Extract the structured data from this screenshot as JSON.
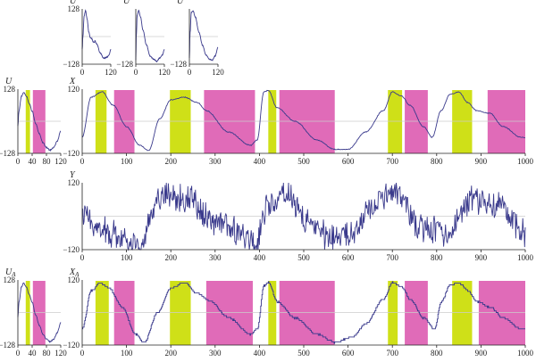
{
  "colors": {
    "trace": "#3a3a8c",
    "highlight_yellow": "#cfe018",
    "highlight_magenta": "#e06bb8",
    "axis": "#222222",
    "zero_line": "#cccccc"
  },
  "chart_data": [
    {
      "id": "u1",
      "type": "line",
      "ylabel": "U",
      "xlabel": "",
      "xlim": [
        0,
        120
      ],
      "ylim": [
        -128,
        128
      ],
      "x_ticks": [
        "0",
        "120"
      ],
      "y_ticks": [
        "128",
        "−128"
      ],
      "tick_side": "left",
      "shape": "wave_dip",
      "noise": 2,
      "keypoints": [
        [
          0,
          -60
        ],
        [
          3,
          0
        ],
        [
          8,
          95
        ],
        [
          14,
          120
        ],
        [
          20,
          85
        ],
        [
          28,
          20
        ],
        [
          34,
          -5
        ],
        [
          40,
          -10
        ],
        [
          48,
          -28
        ],
        [
          54,
          -22
        ],
        [
          62,
          -35
        ],
        [
          75,
          -75
        ],
        [
          90,
          -100
        ],
        [
          105,
          -95
        ],
        [
          113,
          -85
        ],
        [
          120,
          -60
        ]
      ],
      "highlights": []
    },
    {
      "id": "u2",
      "type": "line",
      "ylabel": "U",
      "xlabel": "",
      "xlim": [
        0,
        120
      ],
      "ylim": [
        -128,
        128
      ],
      "x_ticks": [
        "0",
        "120"
      ],
      "y_ticks": [
        "",
        "−128"
      ],
      "tick_side": "left",
      "shape": "wave_drop",
      "noise": 2,
      "keypoints": [
        [
          0,
          -110
        ],
        [
          2,
          0
        ],
        [
          6,
          100
        ],
        [
          12,
          120
        ],
        [
          20,
          90
        ],
        [
          30,
          30
        ],
        [
          45,
          -40
        ],
        [
          60,
          -90
        ],
        [
          75,
          -105
        ],
        [
          88,
          -115
        ],
        [
          100,
          -100
        ],
        [
          112,
          -85
        ],
        [
          120,
          -60
        ]
      ],
      "highlights": []
    },
    {
      "id": "u3",
      "type": "line",
      "ylabel": "U",
      "xlabel": "",
      "xlim": [
        0,
        120
      ],
      "ylim": [
        -128,
        128
      ],
      "x_ticks": [
        "0",
        "120"
      ],
      "y_ticks": [
        "",
        "−128"
      ],
      "tick_side": "left",
      "shape": "wave_drop",
      "noise": 2,
      "keypoints": [
        [
          0,
          -100
        ],
        [
          3,
          20
        ],
        [
          8,
          110
        ],
        [
          15,
          120
        ],
        [
          25,
          90
        ],
        [
          40,
          20
        ],
        [
          55,
          -40
        ],
        [
          70,
          -85
        ],
        [
          85,
          -105
        ],
        [
          95,
          -110
        ],
        [
          108,
          -90
        ],
        [
          120,
          -50
        ]
      ],
      "highlights": []
    },
    {
      "id": "u_main",
      "type": "line",
      "ylabel": "U",
      "xlabel": "",
      "xlim": [
        0,
        120
      ],
      "ylim": [
        -128,
        128
      ],
      "x_ticks": [
        "0",
        "40",
        "80",
        "120"
      ],
      "y_ticks": [
        "128",
        "−128"
      ],
      "tick_side": "left",
      "shape": "wave_drop",
      "noise": 2,
      "keypoints": [
        [
          0,
          -20
        ],
        [
          3,
          40
        ],
        [
          10,
          100
        ],
        [
          16,
          115
        ],
        [
          24,
          100
        ],
        [
          32,
          70
        ],
        [
          40,
          40
        ],
        [
          50,
          -10
        ],
        [
          60,
          -50
        ],
        [
          70,
          -85
        ],
        [
          80,
          -105
        ],
        [
          90,
          -115
        ],
        [
          100,
          -105
        ],
        [
          110,
          -80
        ],
        [
          120,
          -40
        ]
      ],
      "highlights": [
        {
          "start": 22,
          "end": 34,
          "color": "yellow"
        },
        {
          "start": 42,
          "end": 77,
          "color": "magenta"
        }
      ]
    },
    {
      "id": "x_main",
      "type": "line",
      "ylabel": "X",
      "xlabel": "",
      "xlim": [
        0,
        1000
      ],
      "ylim": [
        -120,
        120
      ],
      "x_ticks": [
        "0",
        "100",
        "200",
        "300",
        "400",
        "500",
        "600",
        "700",
        "800",
        "900",
        "1000"
      ],
      "y_ticks": [
        "120",
        "−120"
      ],
      "tick_side": "left",
      "shape": "smooth",
      "noise": 1.5,
      "keypoints": [
        [
          0,
          -60
        ],
        [
          20,
          90
        ],
        [
          45,
          110
        ],
        [
          70,
          60
        ],
        [
          100,
          -20
        ],
        [
          130,
          -90
        ],
        [
          150,
          -110
        ],
        [
          175,
          10
        ],
        [
          200,
          80
        ],
        [
          230,
          90
        ],
        [
          260,
          70
        ],
        [
          280,
          40
        ],
        [
          330,
          -40
        ],
        [
          380,
          -90
        ],
        [
          395,
          -70
        ],
        [
          410,
          110
        ],
        [
          420,
          115
        ],
        [
          440,
          50
        ],
        [
          480,
          0
        ],
        [
          530,
          -70
        ],
        [
          570,
          -105
        ],
        [
          600,
          -105
        ],
        [
          640,
          -40
        ],
        [
          680,
          40
        ],
        [
          700,
          110
        ],
        [
          720,
          95
        ],
        [
          740,
          60
        ],
        [
          770,
          -20
        ],
        [
          790,
          -60
        ],
        [
          810,
          40
        ],
        [
          830,
          100
        ],
        [
          850,
          110
        ],
        [
          870,
          70
        ],
        [
          890,
          40
        ],
        [
          920,
          30
        ],
        [
          950,
          -20
        ],
        [
          990,
          -60
        ]
      ],
      "highlights": [
        {
          "start": 30,
          "end": 55,
          "color": "yellow"
        },
        {
          "start": 72,
          "end": 118,
          "color": "magenta"
        },
        {
          "start": 198,
          "end": 245,
          "color": "yellow"
        },
        {
          "start": 275,
          "end": 390,
          "color": "magenta"
        },
        {
          "start": 420,
          "end": 438,
          "color": "yellow"
        },
        {
          "start": 445,
          "end": 570,
          "color": "magenta"
        },
        {
          "start": 690,
          "end": 722,
          "color": "yellow"
        },
        {
          "start": 728,
          "end": 780,
          "color": "magenta"
        },
        {
          "start": 835,
          "end": 880,
          "color": "yellow"
        },
        {
          "start": 915,
          "end": 1000,
          "color": "magenta"
        }
      ]
    },
    {
      "id": "y_main",
      "type": "line",
      "ylabel": "Y",
      "xlabel": "",
      "xlim": [
        0,
        1000
      ],
      "ylim": [
        -120,
        120
      ],
      "x_ticks": [
        "0",
        "100",
        "200",
        "300",
        "400",
        "500",
        "600",
        "700",
        "800",
        "900",
        "1000"
      ],
      "y_ticks": [
        "120",
        "−120"
      ],
      "tick_side": "left",
      "shape": "noisy",
      "noise": 45,
      "keypoints": [
        [
          0,
          0
        ],
        [
          60,
          -60
        ],
        [
          130,
          -100
        ],
        [
          180,
          80
        ],
        [
          240,
          60
        ],
        [
          300,
          -20
        ],
        [
          360,
          -60
        ],
        [
          390,
          -100
        ],
        [
          420,
          40
        ],
        [
          460,
          90
        ],
        [
          500,
          -10
        ],
        [
          560,
          -80
        ],
        [
          600,
          -70
        ],
        [
          660,
          30
        ],
        [
          700,
          95
        ],
        [
          760,
          -40
        ],
        [
          820,
          -60
        ],
        [
          880,
          60
        ],
        [
          940,
          40
        ],
        [
          1000,
          -60
        ]
      ],
      "highlights": []
    },
    {
      "id": "ua_main",
      "type": "line",
      "ylabel": "UA",
      "xlabel": "",
      "xlim": [
        0,
        120
      ],
      "ylim": [
        -128,
        128
      ],
      "x_ticks": [
        "0",
        "40",
        "80",
        "120"
      ],
      "y_ticks": [
        "128",
        "−128"
      ],
      "tick_side": "left",
      "shape": "wave_drop",
      "noise": 2,
      "keypoints": [
        [
          0,
          -20
        ],
        [
          3,
          40
        ],
        [
          10,
          100
        ],
        [
          16,
          115
        ],
        [
          24,
          100
        ],
        [
          32,
          70
        ],
        [
          40,
          40
        ],
        [
          50,
          -10
        ],
        [
          60,
          -50
        ],
        [
          70,
          -85
        ],
        [
          80,
          -105
        ],
        [
          90,
          -115
        ],
        [
          100,
          -105
        ],
        [
          110,
          -80
        ],
        [
          120,
          -40
        ]
      ],
      "highlights": [
        {
          "start": 22,
          "end": 34,
          "color": "yellow"
        },
        {
          "start": 42,
          "end": 77,
          "color": "magenta"
        }
      ]
    },
    {
      "id": "xa_main",
      "type": "line",
      "ylabel": "XA",
      "xlabel": "",
      "xlim": [
        0,
        1000
      ],
      "ylim": [
        -120,
        120
      ],
      "x_ticks": [
        "0",
        "100",
        "200",
        "300",
        "400",
        "500",
        "600",
        "700",
        "800",
        "900",
        "1000"
      ],
      "y_ticks": [
        "120",
        "−120"
      ],
      "tick_side": "left",
      "shape": "steps",
      "noise": 2,
      "keypoints": [
        [
          0,
          -60
        ],
        [
          20,
          80
        ],
        [
          40,
          110
        ],
        [
          60,
          90
        ],
        [
          90,
          20
        ],
        [
          120,
          -80
        ],
        [
          140,
          -110
        ],
        [
          170,
          0
        ],
        [
          200,
          90
        ],
        [
          230,
          110
        ],
        [
          260,
          70
        ],
        [
          290,
          40
        ],
        [
          330,
          -20
        ],
        [
          380,
          -80
        ],
        [
          395,
          -60
        ],
        [
          410,
          100
        ],
        [
          420,
          110
        ],
        [
          440,
          40
        ],
        [
          480,
          -20
        ],
        [
          530,
          -80
        ],
        [
          570,
          -110
        ],
        [
          610,
          -90
        ],
        [
          640,
          -40
        ],
        [
          680,
          50
        ],
        [
          700,
          110
        ],
        [
          720,
          95
        ],
        [
          740,
          50
        ],
        [
          770,
          -20
        ],
        [
          795,
          -60
        ],
        [
          810,
          40
        ],
        [
          830,
          100
        ],
        [
          850,
          110
        ],
        [
          870,
          80
        ],
        [
          890,
          40
        ],
        [
          920,
          20
        ],
        [
          950,
          -20
        ],
        [
          990,
          -60
        ]
      ],
      "highlights": [
        {
          "start": 30,
          "end": 60,
          "color": "yellow"
        },
        {
          "start": 72,
          "end": 118,
          "color": "magenta"
        },
        {
          "start": 198,
          "end": 245,
          "color": "yellow"
        },
        {
          "start": 280,
          "end": 385,
          "color": "magenta"
        },
        {
          "start": 420,
          "end": 438,
          "color": "yellow"
        },
        {
          "start": 445,
          "end": 570,
          "color": "magenta"
        },
        {
          "start": 690,
          "end": 712,
          "color": "yellow"
        },
        {
          "start": 728,
          "end": 780,
          "color": "magenta"
        },
        {
          "start": 835,
          "end": 880,
          "color": "yellow"
        },
        {
          "start": 895,
          "end": 1000,
          "color": "magenta"
        }
      ]
    }
  ]
}
